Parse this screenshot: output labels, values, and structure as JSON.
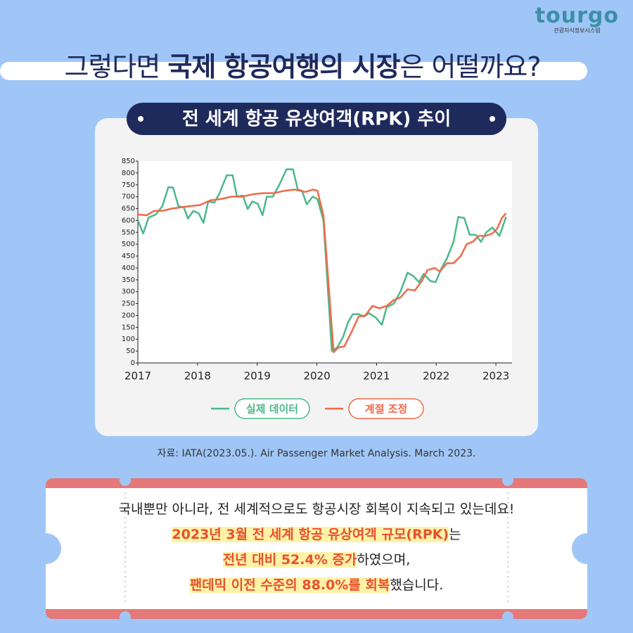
{
  "header": {
    "logo": "tourgo",
    "logo_sub": "관광지식정보시스템",
    "title_parts": [
      {
        "text": "그렇다면 ",
        "bold": false
      },
      {
        "text": "국제 항공여행의 시장",
        "bold": true
      },
      {
        "text": "은 어떨까요?",
        "bold": false
      }
    ]
  },
  "chart_data": {
    "type": "line",
    "title": "전 세계 항공 유상여객(RPK) 추이",
    "xlim": [
      2017,
      2023.27
    ],
    "xticks": [
      2017,
      2018,
      2019,
      2020,
      2021,
      2022,
      2023
    ],
    "ylim": [
      0,
      850
    ],
    "yticks": [
      0,
      50,
      100,
      150,
      200,
      250,
      300,
      350,
      400,
      450,
      500,
      550,
      600,
      650,
      700,
      750,
      800,
      850
    ],
    "grid": false,
    "series": [
      {
        "name": "실제 데이터",
        "color": "#4cb88a",
        "x": [
          2017.0,
          2017.09,
          2017.18,
          2017.3,
          2017.41,
          2017.51,
          2017.59,
          2017.68,
          2017.77,
          2017.84,
          2017.93,
          2018.02,
          2018.1,
          2018.18,
          2018.28,
          2018.36,
          2018.49,
          2018.59,
          2018.66,
          2018.76,
          2018.84,
          2018.92,
          2019.01,
          2019.09,
          2019.16,
          2019.26,
          2019.37,
          2019.49,
          2019.6,
          2019.68,
          2019.75,
          2019.83,
          2019.93,
          2020.01,
          2020.11,
          2020.25,
          2020.34,
          2020.44,
          2020.52,
          2020.6,
          2020.7,
          2020.79,
          2020.87,
          2020.99,
          2021.09,
          2021.17,
          2021.29,
          2021.4,
          2021.52,
          2021.62,
          2021.71,
          2021.79,
          2021.9,
          2021.99,
          2022.09,
          2022.18,
          2022.29,
          2022.37,
          2022.47,
          2022.56,
          2022.66,
          2022.75,
          2022.84,
          2022.94,
          2023.06,
          2023.17
        ],
        "values": [
          600,
          545,
          612,
          625,
          660,
          740,
          738,
          660,
          655,
          608,
          640,
          630,
          590,
          680,
          675,
          710,
          790,
          790,
          700,
          705,
          648,
          680,
          670,
          622,
          700,
          700,
          750,
          815,
          815,
          730,
          725,
          668,
          700,
          690,
          600,
          50,
          65,
          110,
          170,
          205,
          205,
          195,
          210,
          190,
          160,
          235,
          250,
          300,
          380,
          365,
          340,
          375,
          345,
          340,
          400,
          440,
          510,
          615,
          610,
          540,
          540,
          510,
          550,
          570,
          535,
          615
        ]
      },
      {
        "name": "계절 조정",
        "color": "#ef6a4a",
        "x": [
          2017.0,
          2017.15,
          2017.27,
          2017.41,
          2017.57,
          2017.72,
          2017.86,
          2018.04,
          2018.22,
          2018.39,
          2018.57,
          2018.75,
          2018.92,
          2019.1,
          2019.28,
          2019.46,
          2019.63,
          2019.81,
          2019.93,
          2020.01,
          2020.11,
          2020.28,
          2020.36,
          2020.46,
          2020.58,
          2020.7,
          2020.81,
          2020.93,
          2021.05,
          2021.17,
          2021.29,
          2021.4,
          2021.52,
          2021.64,
          2021.76,
          2021.85,
          2021.97,
          2022.06,
          2022.18,
          2022.29,
          2022.41,
          2022.51,
          2022.61,
          2022.71,
          2022.83,
          2022.94,
          2023.02,
          2023.1,
          2023.17
        ],
        "values": [
          625,
          622,
          640,
          640,
          650,
          655,
          660,
          665,
          685,
          690,
          700,
          700,
          710,
          715,
          715,
          725,
          730,
          720,
          730,
          725,
          620,
          45,
          65,
          70,
          130,
          195,
          200,
          240,
          230,
          240,
          265,
          275,
          310,
          305,
          345,
          390,
          400,
          385,
          420,
          420,
          450,
          500,
          510,
          535,
          535,
          545,
          565,
          610,
          630
        ]
      }
    ],
    "source": "자료: IATA(2023.05.). Air Passenger Market Analysis. March 2023."
  },
  "note": {
    "lines": [
      [
        {
          "text": "국내뿐만 아니라, 전 세계적으로도 항공시장 회복이 지속되고 있는데요!",
          "highlight": false
        }
      ],
      [
        {
          "text": "2023년 3월 전 세계 항공 유상여객 규모(RPK)",
          "highlight": true
        },
        {
          "text": "는",
          "highlight": false
        }
      ],
      [
        {
          "text": "전년 대비 52.4% 증가",
          "highlight": true
        },
        {
          "text": "하였으며,",
          "highlight": false
        }
      ],
      [
        {
          "text": "팬데믹 이전 수준의 88.0%를 회복",
          "highlight": true
        },
        {
          "text": "했습니다.",
          "highlight": false
        }
      ]
    ]
  }
}
